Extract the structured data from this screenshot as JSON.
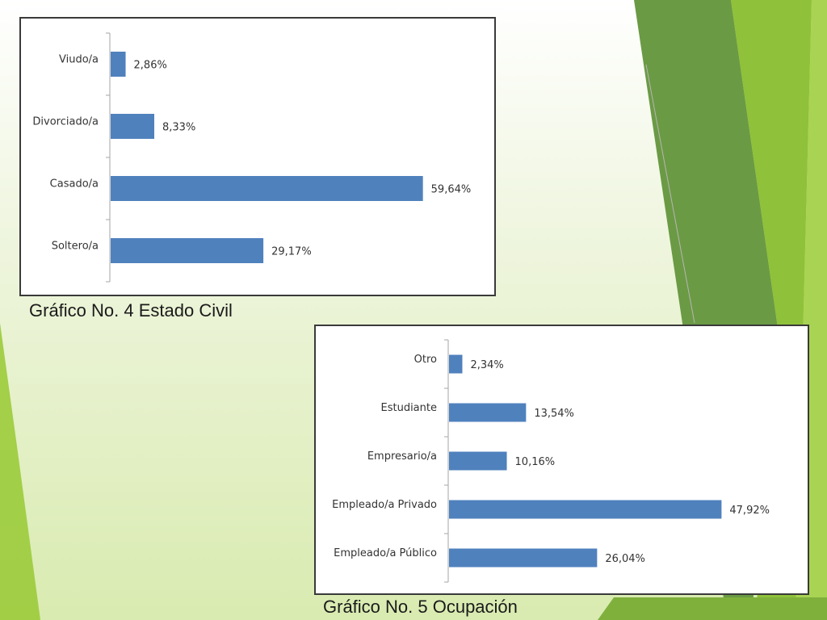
{
  "theme": {
    "bar_color": "#4f81bd",
    "axis_color": "#a6a6a6",
    "accent_green_dark": "#6a9a43",
    "accent_green_light": "#9bcb3b"
  },
  "captions": {
    "chart1": "Gráfico No. 4 Estado Civil",
    "chart2": "Gráfico No. 5 Ocupación"
  },
  "chart_data": [
    {
      "type": "bar",
      "orientation": "horizontal",
      "categories": [
        "Viudo/a",
        "Divorciado/a",
        "Casado/a",
        "Soltero/a"
      ],
      "values": [
        2.86,
        8.33,
        59.64,
        29.17
      ],
      "value_labels": [
        "2,86%",
        "8,33%",
        "59,64%",
        "29,17%"
      ],
      "title": "",
      "xlabel": "",
      "ylabel": "",
      "xlim": [
        0,
        60
      ],
      "grid": false
    },
    {
      "type": "bar",
      "orientation": "horizontal",
      "categories": [
        "Otro",
        "Estudiante",
        "Empresario/a",
        "Empleado/a Privado",
        "Empleado/a Público"
      ],
      "values": [
        2.34,
        13.54,
        10.16,
        47.92,
        26.04
      ],
      "value_labels": [
        "2,34%",
        "13,54%",
        "10,16%",
        "47,92%",
        "26,04%"
      ],
      "title": "",
      "xlabel": "",
      "ylabel": "",
      "xlim": [
        0,
        49
      ],
      "grid": false
    }
  ]
}
